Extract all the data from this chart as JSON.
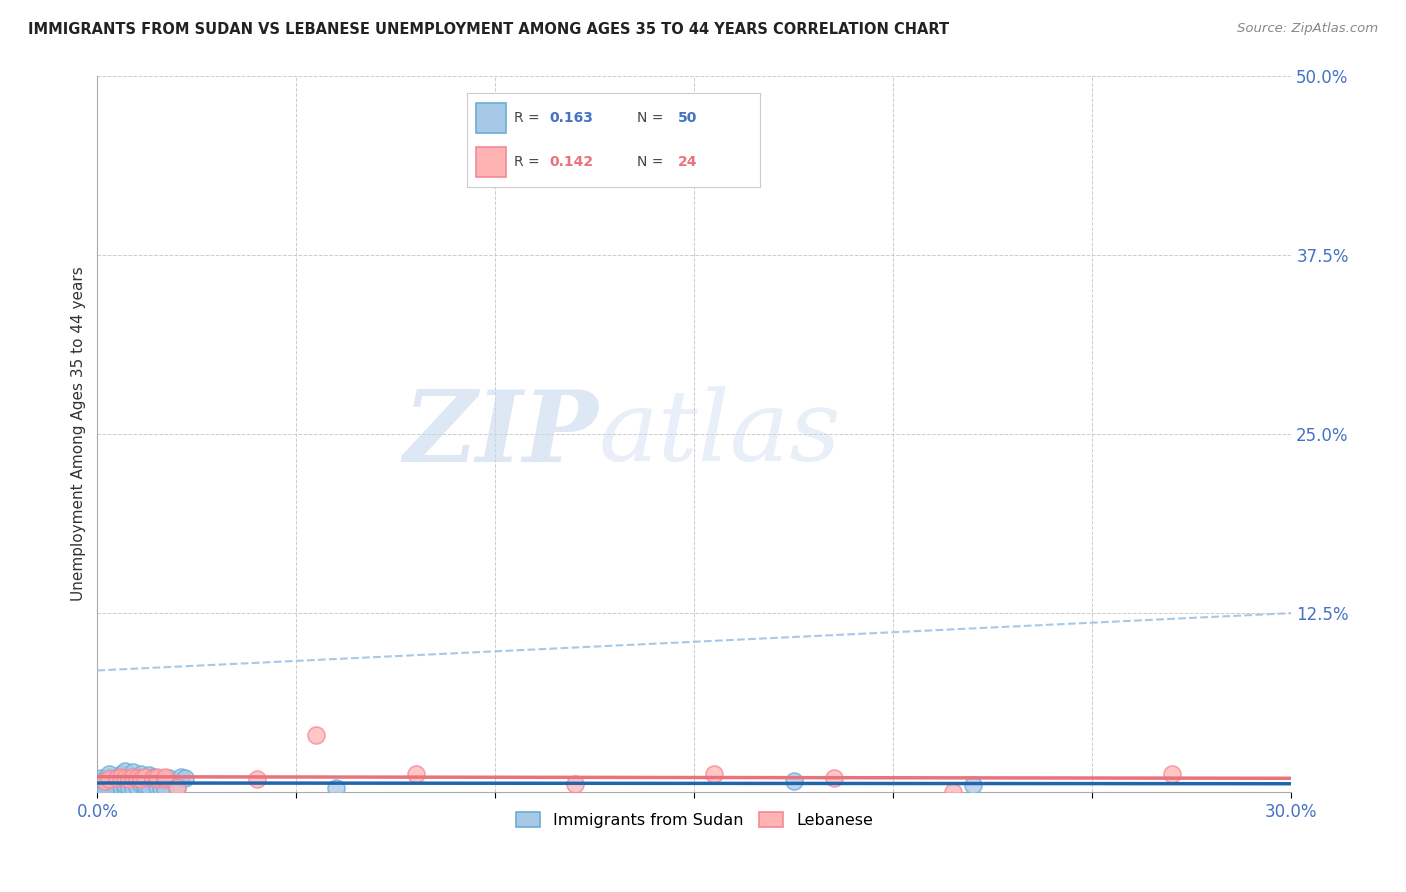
{
  "title": "IMMIGRANTS FROM SUDAN VS LEBANESE UNEMPLOYMENT AMONG AGES 35 TO 44 YEARS CORRELATION CHART",
  "source": "Source: ZipAtlas.com",
  "ylabel": "Unemployment Among Ages 35 to 44 years",
  "xlim": [
    0.0,
    0.3
  ],
  "ylim": [
    0.0,
    0.5
  ],
  "x_ticks": [
    0.0,
    0.05,
    0.1,
    0.15,
    0.2,
    0.25,
    0.3
  ],
  "x_tick_labels": [
    "0.0%",
    "",
    "",
    "",
    "",
    "",
    "30.0%"
  ],
  "y_ticks": [
    0.0,
    0.125,
    0.25,
    0.375,
    0.5
  ],
  "y_tick_labels": [
    "",
    "12.5%",
    "25.0%",
    "37.5%",
    "50.0%"
  ],
  "grid_color": "#cccccc",
  "background_color": "#ffffff",
  "watermark_zip": "ZIP",
  "watermark_atlas": "atlas",
  "blue_color_face": "#a8c8e8",
  "blue_color_edge": "#6baed6",
  "pink_color_face": "#ffb3b3",
  "pink_color_edge": "#f48898",
  "blue_line_color": "#2166ac",
  "pink_line_color": "#e8737a",
  "dashed_line_color": "#a8c8e8",
  "tick_color": "#4472c4",
  "title_color": "#222222",
  "source_color": "#888888",
  "blue_scatter": [
    [
      0.001,
      0.01
    ],
    [
      0.001,
      0.008
    ],
    [
      0.002,
      0.003
    ],
    [
      0.002,
      0.005
    ],
    [
      0.002,
      0.007
    ],
    [
      0.002,
      0.004
    ],
    [
      0.002,
      0.006
    ],
    [
      0.003,
      0.002
    ],
    [
      0.003,
      0.004
    ],
    [
      0.003,
      0.007
    ],
    [
      0.003,
      0.009
    ],
    [
      0.003,
      0.011
    ],
    [
      0.003,
      0.013
    ],
    [
      0.004,
      0.003
    ],
    [
      0.004,
      0.005
    ],
    [
      0.004,
      0.006
    ],
    [
      0.004,
      0.008
    ],
    [
      0.005,
      0.003
    ],
    [
      0.005,
      0.002
    ],
    [
      0.005,
      0.005
    ],
    [
      0.006,
      0.004
    ],
    [
      0.006,
      0.003
    ],
    [
      0.006,
      0.013
    ],
    [
      0.007,
      0.003
    ],
    [
      0.007,
      0.005
    ],
    [
      0.007,
      0.015
    ],
    [
      0.008,
      0.003
    ],
    [
      0.008,
      0.011
    ],
    [
      0.009,
      0.002
    ],
    [
      0.009,
      0.014
    ],
    [
      0.01,
      0.004
    ],
    [
      0.01,
      0.011
    ],
    [
      0.011,
      0.006
    ],
    [
      0.011,
      0.013
    ],
    [
      0.012,
      0.003
    ],
    [
      0.012,
      0.005
    ],
    [
      0.013,
      0.004
    ],
    [
      0.013,
      0.012
    ],
    [
      0.014,
      0.011
    ],
    [
      0.015,
      0.004
    ],
    [
      0.016,
      0.003
    ],
    [
      0.017,
      0.002
    ],
    [
      0.018,
      0.01
    ],
    [
      0.02,
      0.003
    ],
    [
      0.021,
      0.011
    ],
    [
      0.022,
      0.01
    ],
    [
      0.06,
      0.003
    ],
    [
      0.175,
      0.008
    ],
    [
      0.22,
      0.005
    ],
    [
      0.002,
      0.001
    ]
  ],
  "pink_scatter": [
    [
      0.002,
      0.008
    ],
    [
      0.003,
      0.009
    ],
    [
      0.005,
      0.01
    ],
    [
      0.006,
      0.011
    ],
    [
      0.007,
      0.01
    ],
    [
      0.008,
      0.009
    ],
    [
      0.009,
      0.011
    ],
    [
      0.01,
      0.01
    ],
    [
      0.011,
      0.009
    ],
    [
      0.012,
      0.011
    ],
    [
      0.014,
      0.01
    ],
    [
      0.015,
      0.009
    ],
    [
      0.015,
      0.011
    ],
    [
      0.017,
      0.009
    ],
    [
      0.017,
      0.011
    ],
    [
      0.02,
      0.004
    ],
    [
      0.04,
      0.009
    ],
    [
      0.055,
      0.04
    ],
    [
      0.08,
      0.013
    ],
    [
      0.12,
      0.006
    ],
    [
      0.155,
      0.013
    ],
    [
      0.185,
      0.01
    ],
    [
      0.215,
      0.0
    ],
    [
      0.27,
      0.013
    ]
  ],
  "blue_R": "0.163",
  "blue_N": "50",
  "pink_R": "0.142",
  "pink_N": "24"
}
